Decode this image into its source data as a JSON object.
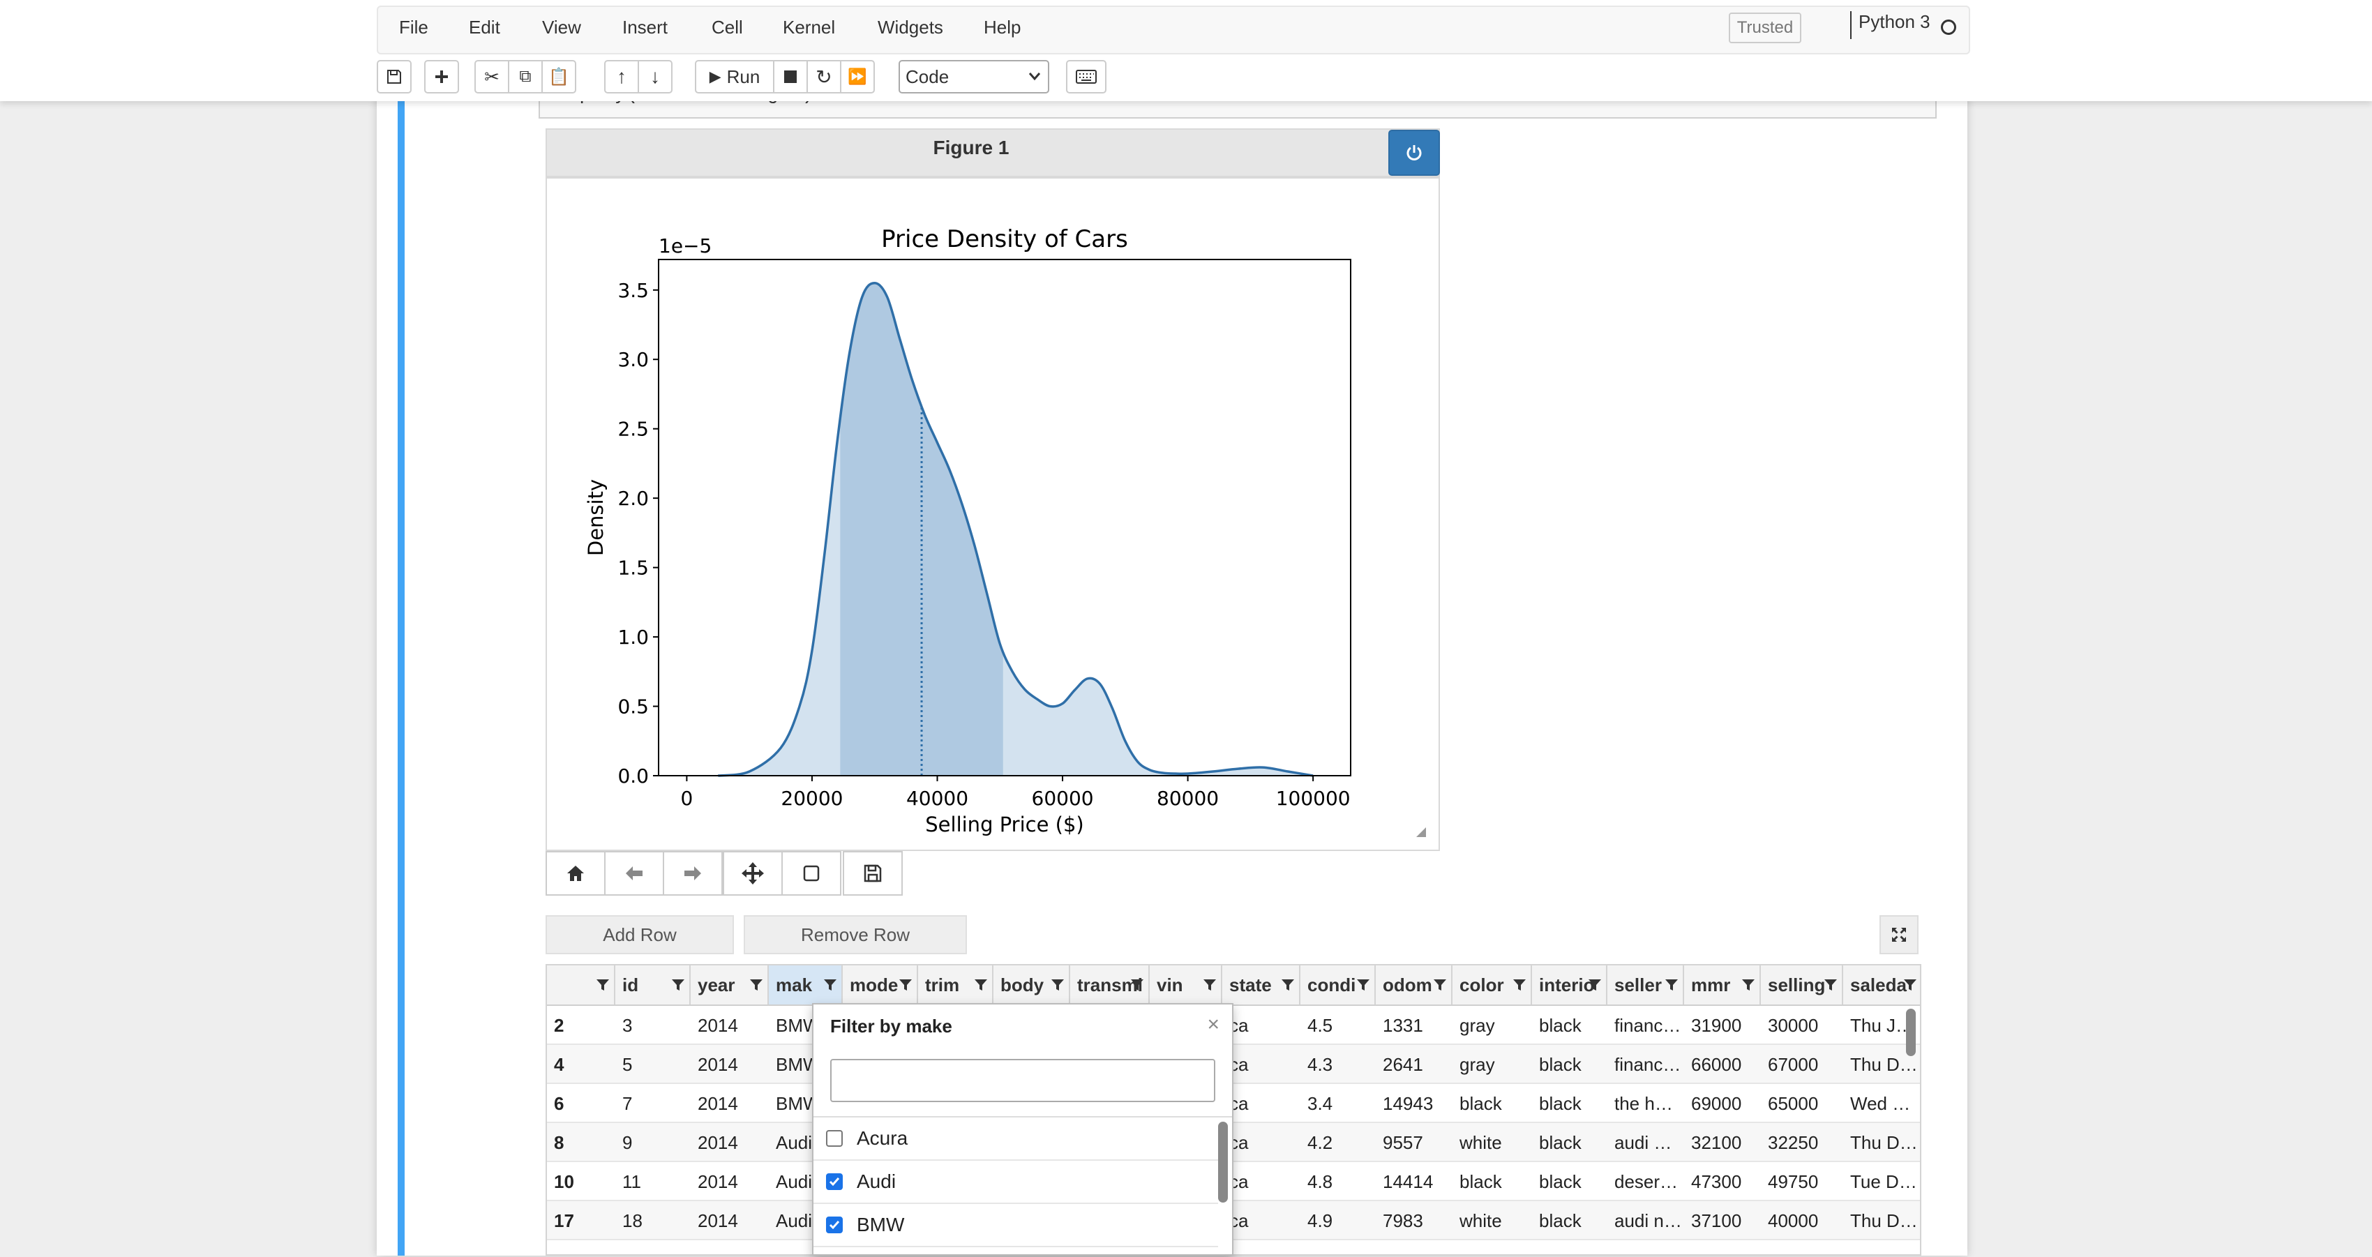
{
  "menu": [
    "File",
    "Edit",
    "View",
    "Insert",
    "Cell",
    "Kernel",
    "Widgets",
    "Help"
  ],
  "trusted_label": "Trusted",
  "kernel_name": "Python 3",
  "toolbar": {
    "run_label": "Run",
    "cell_type": "Code"
  },
  "code_line": "display(meta_df_widget)",
  "figure": {
    "title": "Figure 1"
  },
  "chart_data": {
    "type": "area",
    "title": "Price Density of Cars",
    "xlabel": "Selling Price ($)",
    "ylabel": "Density",
    "y_scale_note": "1e−5",
    "xlim": [
      -4500,
      106000
    ],
    "ylim": [
      0,
      3.72
    ],
    "x_ticks": [
      "0",
      "20000",
      "40000",
      "60000",
      "80000",
      "100000"
    ],
    "y_ticks": [
      "0.0",
      "0.5",
      "1.0",
      "1.5",
      "2.0",
      "2.5",
      "3.0",
      "3.5"
    ],
    "x": [
      5000,
      10000,
      15000,
      18000,
      20000,
      22000,
      24000,
      26000,
      28000,
      30000,
      32000,
      34000,
      36000,
      38000,
      40000,
      42000,
      44000,
      46000,
      48000,
      50000,
      52000,
      54000,
      56000,
      58000,
      60000,
      62000,
      64000,
      66000,
      68000,
      70000,
      72000,
      74000,
      76000,
      78000,
      80000,
      84000,
      88000,
      92000,
      96000,
      100000
    ],
    "y": [
      0.0,
      0.03,
      0.2,
      0.5,
      0.9,
      1.6,
      2.4,
      3.05,
      3.45,
      3.55,
      3.45,
      3.15,
      2.85,
      2.6,
      2.4,
      2.2,
      1.95,
      1.65,
      1.3,
      0.95,
      0.75,
      0.62,
      0.55,
      0.5,
      0.52,
      0.62,
      0.7,
      0.66,
      0.48,
      0.25,
      0.1,
      0.04,
      0.02,
      0.015,
      0.015,
      0.03,
      0.05,
      0.06,
      0.03,
      0.0
    ],
    "shaded_range": [
      24500,
      50500
    ],
    "median": 37500
  },
  "grid": {
    "add_row_label": "Add Row",
    "remove_row_label": "Remove Row",
    "columns": [
      "",
      "id",
      "year",
      "mak",
      "mode",
      "trim",
      "body",
      "transmi",
      "vin",
      "state",
      "condi",
      "odom",
      "color",
      "interio",
      "seller",
      "mmr",
      "selling",
      "saleda"
    ],
    "rows": [
      [
        "2",
        "3",
        "2014",
        "BMW",
        "",
        "",
        "",
        "",
        "",
        "ca",
        "4.5",
        "1331",
        "gray",
        "black",
        "financ…",
        "31900",
        "30000",
        "Thu J…"
      ],
      [
        "4",
        "5",
        "2014",
        "BMW",
        "",
        "",
        "",
        "",
        "",
        "ca",
        "4.3",
        "2641",
        "gray",
        "black",
        "financ…",
        "66000",
        "67000",
        "Thu D…"
      ],
      [
        "6",
        "7",
        "2014",
        "BMW",
        "",
        "",
        "",
        "",
        "",
        "ca",
        "3.4",
        "14943",
        "black",
        "black",
        "the h…",
        "69000",
        "65000",
        "Wed …"
      ],
      [
        "8",
        "9",
        "2014",
        "Audi",
        "",
        "",
        "",
        "",
        "",
        "ca",
        "4.2",
        "9557",
        "white",
        "black",
        "audi …",
        "32100",
        "32250",
        "Thu D…"
      ],
      [
        "10",
        "11",
        "2014",
        "Audi",
        "",
        "",
        "",
        "",
        "",
        "ca",
        "4.8",
        "14414",
        "black",
        "black",
        "deser…",
        "47300",
        "49750",
        "Tue D…"
      ],
      [
        "17",
        "18",
        "2014",
        "Audi",
        "",
        "",
        "",
        "",
        "",
        "ca",
        "4.9",
        "7983",
        "white",
        "black",
        "audi n…",
        "37100",
        "40000",
        "Thu D…"
      ]
    ]
  },
  "filter": {
    "title": "Filter by make",
    "search_value": "",
    "options": [
      {
        "label": "Acura",
        "checked": false
      },
      {
        "label": "Audi",
        "checked": true
      },
      {
        "label": "BMW",
        "checked": true
      }
    ]
  }
}
